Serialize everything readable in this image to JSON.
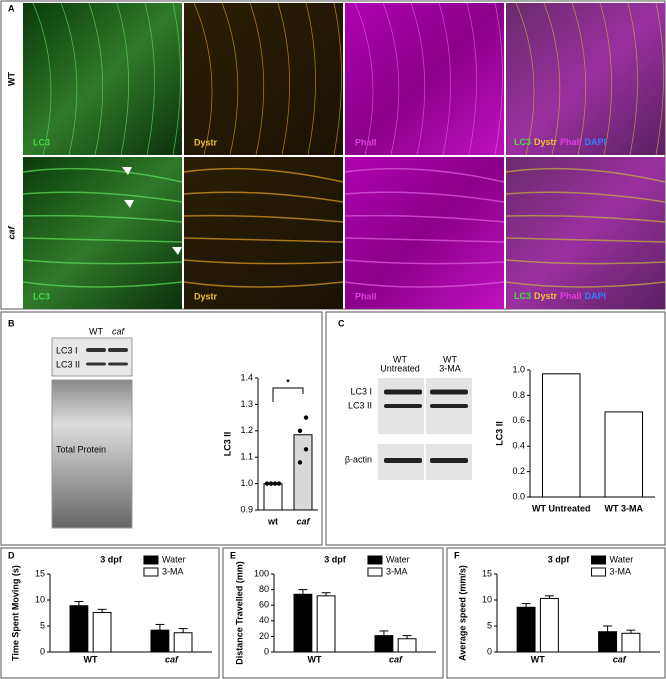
{
  "panel_a": {
    "label": "A",
    "rows": [
      "WT",
      "caf"
    ],
    "channels": [
      "LC3",
      "Dystr",
      "Phall"
    ],
    "merge": [
      "LC3",
      "Dystr",
      "Phall",
      "DAPI"
    ]
  },
  "blot_b": {
    "lanes": [
      "WT",
      "caf"
    ],
    "bands": [
      "LC3 I",
      "LC3 II"
    ],
    "loading": "Total Protein"
  },
  "blot_c": {
    "lanes": [
      [
        "WT",
        "Untreated"
      ],
      [
        "WT",
        "3-MA"
      ]
    ],
    "bands": [
      "LC3 I",
      "LC3 II"
    ],
    "loading": "β-actin"
  },
  "chart_data": [
    {
      "type": "bar",
      "panel": "B",
      "y_label": "LC3 II",
      "categories": [
        "wt",
        "caf"
      ],
      "values": [
        1.0,
        1.185
      ],
      "colors": [
        "#ffffff",
        "#d9d9d9"
      ],
      "points": [
        [
          1,
          1,
          1,
          1
        ],
        [
          1.08,
          1.13,
          1.2,
          1.25
        ]
      ],
      "annotation": "*",
      "ylim": [
        0.9,
        1.4
      ],
      "yticks": [
        0.9,
        {
          "value": 1,
          "label": "1.0"
        },
        1.1,
        1.2,
        1.3,
        1.4
      ]
    },
    {
      "type": "bar",
      "panel": "C",
      "y_label": "LC3 II",
      "categories": [
        "WT Untreated",
        "WT 3-MA"
      ],
      "values": [
        0.97,
        0.67
      ],
      "colors": [
        "#ffffff",
        "#ffffff"
      ],
      "ylim": [
        0,
        1
      ],
      "yticks": [
        {
          "value": 0,
          "label": "0.0"
        },
        0.2,
        0.4,
        0.6,
        0.8,
        {
          "value": 1,
          "label": "1.0"
        }
      ]
    },
    {
      "type": "grouped_bar",
      "panel": "D",
      "title": "3 dpf",
      "y_label": "Time Spent Moving (s)",
      "categories": [
        "WT",
        "caf"
      ],
      "series": [
        {
          "name": "Water",
          "color": "#000000",
          "values": [
            8.9,
            4.2
          ],
          "errors": [
            0.8,
            1.1
          ]
        },
        {
          "name": "3-MA",
          "color": "#ffffff",
          "values": [
            7.6,
            3.7
          ],
          "errors": [
            0.6,
            0.8
          ]
        }
      ],
      "ylim": [
        0,
        15
      ],
      "yticks": [
        0,
        5,
        10,
        15
      ]
    },
    {
      "type": "grouped_bar",
      "panel": "E",
      "title": "3 dpf",
      "y_label": "Distance Travelled (mm)",
      "categories": [
        "WT",
        "caf"
      ],
      "series": [
        {
          "name": "Water",
          "color": "#000000",
          "values": [
            74,
            21
          ],
          "errors": [
            6,
            6
          ]
        },
        {
          "name": "3-MA",
          "color": "#ffffff",
          "values": [
            72,
            17
          ],
          "errors": [
            4,
            4
          ]
        }
      ],
      "ylim": [
        0,
        100
      ],
      "yticks": [
        0,
        20,
        40,
        60,
        80,
        100
      ]
    },
    {
      "type": "grouped_bar",
      "panel": "F",
      "title": "3 dpf",
      "y_label": "Average speed (mm/s)",
      "categories": [
        "WT",
        "caf"
      ],
      "series": [
        {
          "name": "Water",
          "color": "#000000",
          "values": [
            8.6,
            3.9
          ],
          "errors": [
            0.7,
            1.1
          ]
        },
        {
          "name": "3-MA",
          "color": "#ffffff",
          "values": [
            10.3,
            3.6
          ],
          "errors": [
            0.5,
            0.6
          ]
        }
      ],
      "ylim": [
        0,
        15
      ],
      "yticks": [
        0,
        5,
        10,
        15
      ]
    }
  ]
}
